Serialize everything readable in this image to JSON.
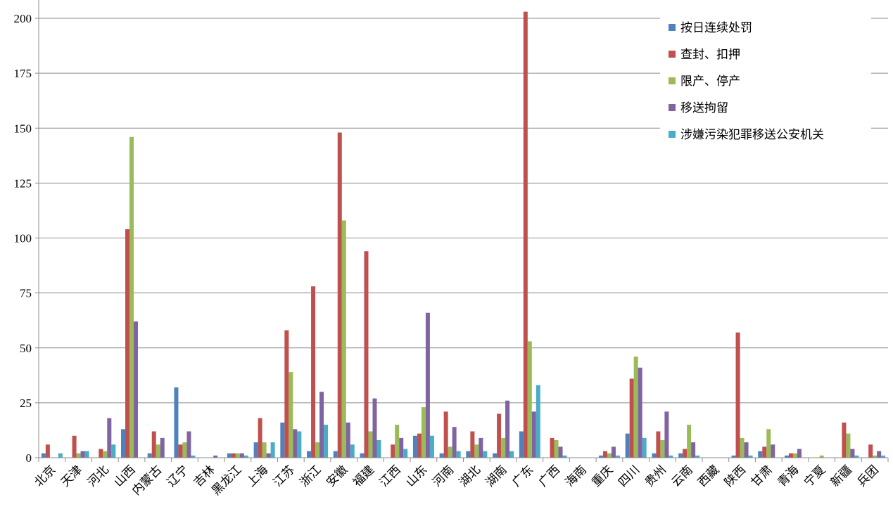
{
  "chart_data": {
    "type": "bar",
    "title": "",
    "xlabel": "",
    "ylabel": "",
    "ylim": [
      0,
      200
    ],
    "yticks": [
      0,
      25,
      50,
      75,
      100,
      125,
      150,
      175,
      200
    ],
    "grid": "horizontal",
    "legend_position": "top-right",
    "categories": [
      "北京",
      "天津",
      "河北",
      "山西",
      "内蒙古",
      "辽宁",
      "吉林",
      "黑龙江",
      "上海",
      "江苏",
      "浙江",
      "安徽",
      "福建",
      "江西",
      "山东",
      "河南",
      "湖北",
      "湖南",
      "广东",
      "广西",
      "海南",
      "重庆",
      "四川",
      "贵州",
      "云南",
      "西藏",
      "陕西",
      "甘肃",
      "青海",
      "宁夏",
      "新疆",
      "兵团"
    ],
    "series": [
      {
        "name": "按日连续处罚",
        "color": "#4f81bd",
        "values": [
          2,
          0,
          0,
          13,
          2,
          32,
          0,
          2,
          7,
          16,
          3,
          3,
          2,
          0,
          10,
          2,
          3,
          2,
          12,
          0,
          0,
          1,
          11,
          2,
          2,
          0,
          1,
          3,
          1,
          0,
          0,
          0
        ]
      },
      {
        "name": "查封、扣押",
        "color": "#c0504d",
        "values": [
          6,
          10,
          4,
          104,
          12,
          6,
          0,
          2,
          18,
          58,
          78,
          148,
          94,
          6,
          11,
          21,
          12,
          20,
          203,
          9,
          0,
          3,
          36,
          12,
          4,
          0,
          57,
          5,
          2,
          0,
          16,
          6
        ]
      },
      {
        "name": "限产、停产",
        "color": "#9bbb59",
        "values": [
          0,
          2,
          3,
          146,
          6,
          7,
          0,
          2,
          7,
          39,
          7,
          108,
          12,
          15,
          23,
          5,
          6,
          9,
          53,
          8,
          0,
          2,
          46,
          8,
          15,
          0,
          9,
          13,
          2,
          1,
          11,
          1
        ]
      },
      {
        "name": "移送拘留",
        "color": "#8064a2",
        "values": [
          0,
          3,
          18,
          62,
          9,
          12,
          1,
          2,
          2,
          13,
          30,
          16,
          27,
          9,
          66,
          14,
          9,
          26,
          21,
          5,
          0,
          5,
          41,
          21,
          7,
          0,
          7,
          6,
          4,
          0,
          4,
          3
        ]
      },
      {
        "name": "涉嫌污染犯罪移送公安机关",
        "color": "#4bacc6",
        "values": [
          2,
          3,
          6,
          0,
          0,
          1,
          0,
          1,
          7,
          12,
          15,
          6,
          8,
          4,
          10,
          3,
          3,
          3,
          33,
          1,
          0,
          1,
          9,
          1,
          1,
          0,
          1,
          0,
          0,
          0,
          1,
          1
        ]
      }
    ]
  }
}
